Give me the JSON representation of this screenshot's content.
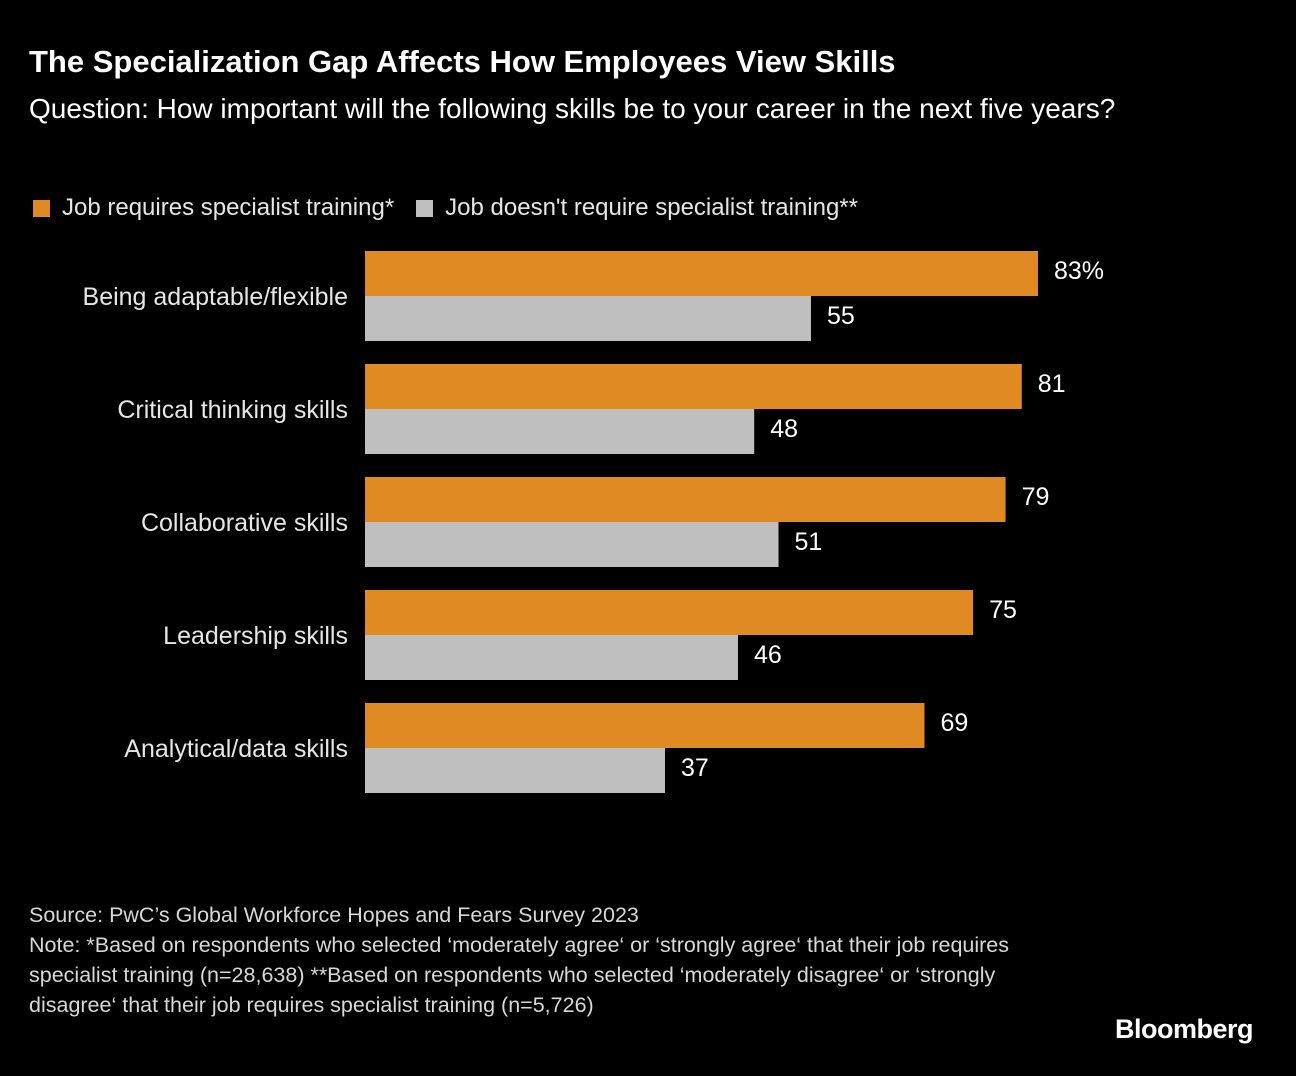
{
  "chart_data": {
    "type": "bar",
    "orientation": "horizontal",
    "title": "The Specialization Gap Affects How Employees View Skills",
    "subtitle": "Question: How important will the following skills be to your career in the next five years?",
    "categories": [
      "Being adaptable/flexible",
      "Critical thinking skills",
      "Collaborative skills",
      "Leadership skills",
      "Analytical/data skills"
    ],
    "series": [
      {
        "name": "Job requires specialist training*",
        "color": "#E08A24",
        "values": [
          83,
          81,
          79,
          75,
          69
        ],
        "labels": [
          "83%",
          "81",
          "79",
          "75",
          "69"
        ]
      },
      {
        "name": "Job doesn't require specialist training**",
        "color": "#BFBFBF",
        "values": [
          55,
          48,
          51,
          46,
          37
        ],
        "labels": [
          "55",
          "48",
          "51",
          "46",
          "37"
        ]
      }
    ],
    "unit": "%",
    "xlim": [
      0,
      100
    ],
    "grid": false,
    "legend_position": "top-left"
  },
  "footer": {
    "source": "Source: PwC’s Global Workforce Hopes and Fears Survey 2023",
    "note": "Note: *Based on respondents who selected ‘moderately agree‘ or ‘strongly agree‘ that their job requires specialist training (n=28,638) **Based on respondents who selected ‘moderately disagree‘ or ‘strongly disagree‘ that their job requires specialist training (n=5,726)"
  },
  "brand": "Bloomberg"
}
